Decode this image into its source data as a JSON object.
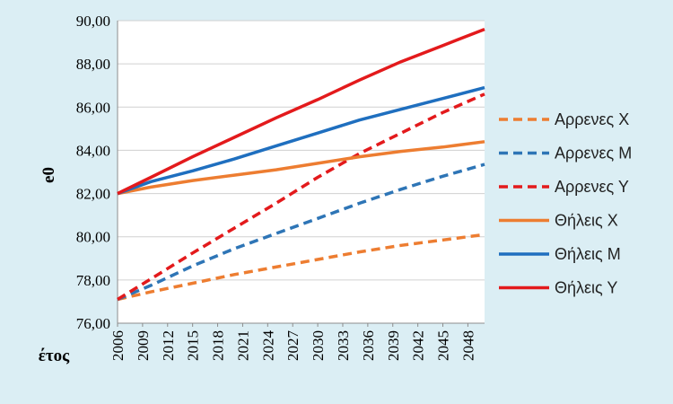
{
  "chart_data": {
    "type": "line",
    "title": "",
    "xlabel": "έτος",
    "ylabel": "e0",
    "ylim": [
      76,
      90
    ],
    "yticks": [
      "76,00",
      "78,00",
      "80,00",
      "82,00",
      "84,00",
      "86,00",
      "88,00",
      "90,00"
    ],
    "x_range": [
      2006,
      2050
    ],
    "xticks": [
      "2006",
      "2009",
      "2012",
      "2015",
      "2018",
      "2021",
      "2024",
      "2027",
      "2030",
      "2033",
      "2036",
      "2039",
      "2042",
      "2045",
      "2048"
    ],
    "grid": "horizontal",
    "legend_position": "right",
    "series": [
      {
        "name": "Αρρενες  Χ",
        "color": "#ed7d31",
        "style": "dashed",
        "x": [
          2006,
          2010,
          2015,
          2020,
          2025,
          2030,
          2035,
          2040,
          2045,
          2050
        ],
        "y": [
          77.1,
          77.45,
          77.85,
          78.25,
          78.6,
          78.95,
          79.3,
          79.6,
          79.85,
          80.1
        ]
      },
      {
        "name": "Αρρενες Μ",
        "color": "#2e75b6",
        "style": "dashed",
        "x": [
          2006,
          2010,
          2015,
          2020,
          2025,
          2030,
          2035,
          2040,
          2045,
          2050
        ],
        "y": [
          77.1,
          77.75,
          78.65,
          79.45,
          80.15,
          80.85,
          81.55,
          82.2,
          82.8,
          83.35
        ]
      },
      {
        "name": "Αρρενες Υ",
        "color": "#e31a1c",
        "style": "dashed",
        "x": [
          2006,
          2010,
          2015,
          2020,
          2025,
          2030,
          2035,
          2040,
          2045,
          2050
        ],
        "y": [
          77.1,
          78.05,
          79.25,
          80.4,
          81.55,
          82.75,
          83.85,
          84.8,
          85.75,
          86.6
        ]
      },
      {
        "name": "Θήλεις  Χ",
        "color": "#ed7d31",
        "style": "solid",
        "x": [
          2006,
          2010,
          2015,
          2020,
          2025,
          2030,
          2035,
          2040,
          2045,
          2050
        ],
        "y": [
          82.0,
          82.3,
          82.6,
          82.85,
          83.1,
          83.4,
          83.7,
          83.95,
          84.15,
          84.4
        ]
      },
      {
        "name": "Θήλεις Μ",
        "color": "#1f6fbf",
        "style": "solid",
        "x": [
          2006,
          2010,
          2015,
          2020,
          2025,
          2030,
          2035,
          2040,
          2045,
          2050
        ],
        "y": [
          82.0,
          82.55,
          83.05,
          83.6,
          84.2,
          84.8,
          85.4,
          85.9,
          86.4,
          86.9
        ]
      },
      {
        "name": "Θήλεις Υ",
        "color": "#e31a1c",
        "style": "solid",
        "x": [
          2006,
          2010,
          2015,
          2020,
          2025,
          2030,
          2035,
          2040,
          2045,
          2050
        ],
        "y": [
          82.0,
          82.75,
          83.7,
          84.6,
          85.5,
          86.35,
          87.25,
          88.1,
          88.85,
          89.6
        ]
      }
    ]
  }
}
